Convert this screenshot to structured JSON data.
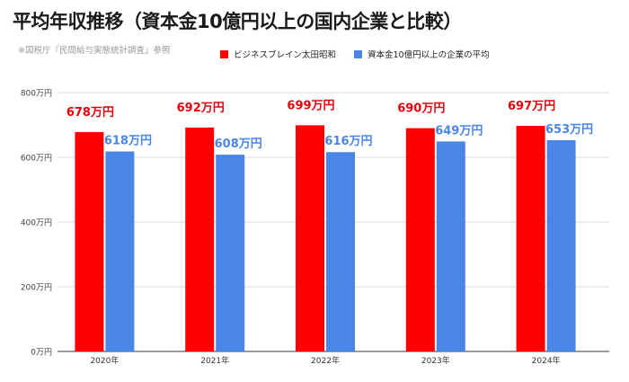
{
  "title": "平均年収推移（資本金10億円以上の国内企業と比較）",
  "source_note": "※国税庁『民間給与実態統計調査』参照",
  "chart_data": {
    "type": "bar",
    "categories": [
      "2020年",
      "2021年",
      "2022年",
      "2023年",
      "2024年"
    ],
    "series": [
      {
        "name": "ビジネスブレイン太田昭和",
        "color": "#ff0000",
        "label_color": "#e8000b",
        "values": [
          678,
          692,
          699,
          690,
          697
        ],
        "labels": [
          "678万円",
          "692万円",
          "699万円",
          "690万円",
          "697万円"
        ]
      },
      {
        "name": "資本金10億円以上の企業の平均",
        "color": "#4a86e8",
        "label_color": "#4a86e8",
        "values": [
          618,
          608,
          616,
          649,
          653
        ],
        "labels": [
          "618万円",
          "608万円",
          "616万円",
          "649万円",
          "653万円"
        ]
      }
    ],
    "yticks": [
      0,
      200,
      400,
      600,
      800
    ],
    "ytick_labels": [
      "0万円",
      "200万円",
      "400万円",
      "600万円",
      "800万円"
    ],
    "ylim": [
      0,
      800
    ],
    "grid": true,
    "legend_position": "top"
  }
}
